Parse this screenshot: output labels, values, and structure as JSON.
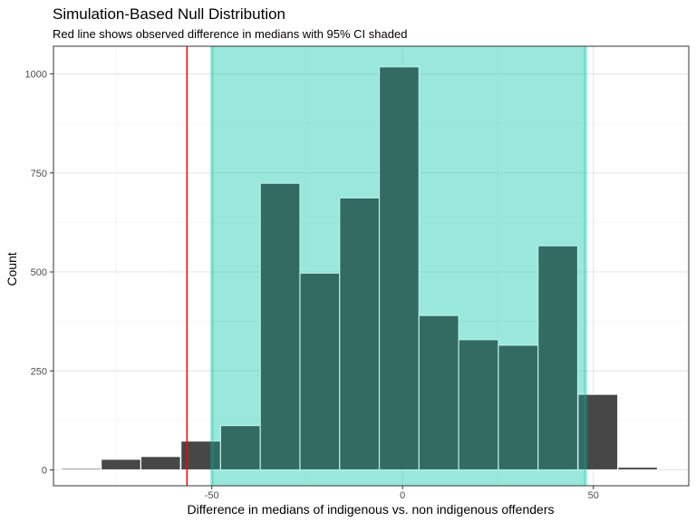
{
  "chart_data": {
    "type": "bar",
    "title": "Simulation-Based Null Distribution",
    "subtitle": "Red line shows observed difference in medians with 95% CI shaded",
    "xlabel": "Difference in medians of indigenous vs. non indigenous offenders",
    "ylabel": "Count",
    "xlim": [
      -91.5,
      75
    ],
    "ylim": [
      -40,
      1070
    ],
    "x_ticks": [
      -50,
      0,
      50
    ],
    "x_tick_labels": [
      "-50",
      "0",
      "50"
    ],
    "y_ticks": [
      0,
      250,
      500,
      750,
      1000
    ],
    "y_tick_labels": [
      "0",
      "250",
      "500",
      "750",
      "1000"
    ],
    "x_minor_ticks": [
      -75,
      -25,
      25
    ],
    "y_minor_ticks": [
      125,
      375,
      625,
      875
    ],
    "grid": true,
    "bin_width": 10.4,
    "bins": [
      {
        "center": -84.2,
        "count": 4
      },
      {
        "center": -73.8,
        "count": 27
      },
      {
        "center": -63.4,
        "count": 34
      },
      {
        "center": -52.9,
        "count": 73
      },
      {
        "center": -42.5,
        "count": 112
      },
      {
        "center": -32.1,
        "count": 724
      },
      {
        "center": -21.7,
        "count": 497
      },
      {
        "center": -11.3,
        "count": 687
      },
      {
        "center": -0.9,
        "count": 1018
      },
      {
        "center": 9.5,
        "count": 390
      },
      {
        "center": 19.9,
        "count": 329
      },
      {
        "center": 30.3,
        "count": 315
      },
      {
        "center": 40.7,
        "count": 566
      },
      {
        "center": 51.2,
        "count": 191
      },
      {
        "center": 61.6,
        "count": 7
      }
    ],
    "observed_difference": -56.5,
    "ci": [
      -50,
      48
    ],
    "colors": {
      "bar_fill": "#474747",
      "bar_stroke": "#ffffff",
      "ci_fill": "#00c5a5",
      "observed_line": "#ff0000"
    }
  }
}
